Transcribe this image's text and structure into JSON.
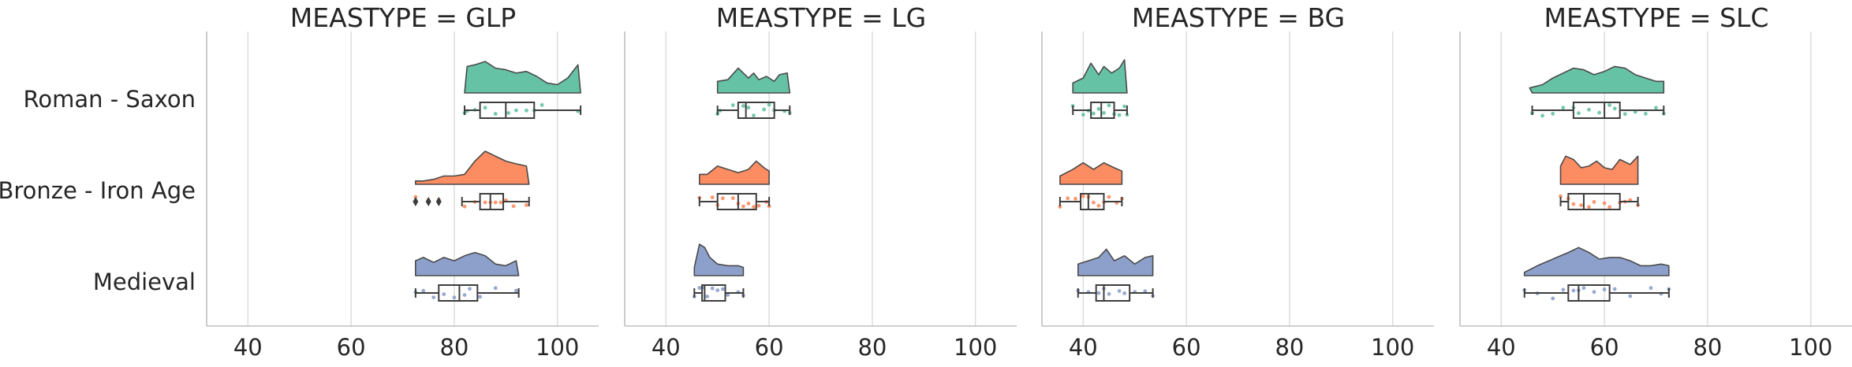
{
  "chart_data": {
    "type": "raincloud",
    "categories": [
      "Roman - Saxon",
      "Bronze - Iron Age",
      "Medieval"
    ],
    "colors": {
      "Roman - Saxon": "#66c2a5",
      "Bronze - Iron Age": "#fc8d62",
      "Medieval": "#8da0cb"
    },
    "xlim": [
      32,
      108
    ],
    "xticks": [
      40,
      60,
      80,
      100
    ],
    "grid": true,
    "panels": [
      {
        "title": "MEASTYPE = GLP",
        "groups": [
          {
            "category": "Roman - Saxon",
            "box": {
              "whislo": 82,
              "q1": 85,
              "med": 90,
              "q3": 95.5,
              "whishi": 104.5,
              "fliers": []
            },
            "points": [
              82,
              82.5,
              84,
              86,
              88,
              90.5,
              92,
              94,
              95.5,
              97,
              104
            ],
            "density": [
              [
                82,
                0.0
              ],
              [
                82.5,
                0.8
              ],
              [
                84,
                0.85
              ],
              [
                86,
                0.95
              ],
              [
                88,
                0.75
              ],
              [
                90,
                0.7
              ],
              [
                92,
                0.6
              ],
              [
                94,
                0.65
              ],
              [
                96,
                0.5
              ],
              [
                98,
                0.3
              ],
              [
                100,
                0.25
              ],
              [
                102,
                0.45
              ],
              [
                104,
                0.85
              ],
              [
                104.5,
                0.0
              ]
            ]
          },
          {
            "category": "Bronze - Iron Age",
            "box": {
              "whislo": 81.5,
              "q1": 85,
              "med": 87,
              "q3": 89.5,
              "whishi": 94.5,
              "fliers": [
                72.5,
                75,
                77
              ]
            },
            "points": [
              72.5,
              75,
              77,
              82,
              84,
              86,
              87,
              88,
              89,
              90,
              91.5,
              94
            ],
            "density": [
              [
                72.5,
                0.0
              ],
              [
                72.5,
                0.1
              ],
              [
                74,
                0.1
              ],
              [
                76,
                0.15
              ],
              [
                78,
                0.25
              ],
              [
                80,
                0.25
              ],
              [
                82,
                0.3
              ],
              [
                84,
                0.7
              ],
              [
                86,
                1.0
              ],
              [
                88,
                0.85
              ],
              [
                90,
                0.7
              ],
              [
                92,
                0.62
              ],
              [
                94,
                0.55
              ],
              [
                94.5,
                0.0
              ]
            ]
          },
          {
            "category": "Medieval",
            "box": {
              "whislo": 72.5,
              "q1": 77,
              "med": 81,
              "q3": 84.5,
              "whishi": 92.5,
              "fliers": []
            },
            "points": [
              72.5,
              74,
              76,
              78,
              80,
              82,
              83,
              85,
              88,
              92
            ],
            "density": [
              [
                72.5,
                0.0
              ],
              [
                72.5,
                0.45
              ],
              [
                74,
                0.55
              ],
              [
                76,
                0.4
              ],
              [
                78,
                0.55
              ],
              [
                80,
                0.45
              ],
              [
                82,
                0.6
              ],
              [
                84,
                0.7
              ],
              [
                86,
                0.6
              ],
              [
                88,
                0.35
              ],
              [
                90,
                0.3
              ],
              [
                92,
                0.45
              ],
              [
                92.5,
                0.0
              ]
            ]
          }
        ]
      },
      {
        "title": "MEASTYPE = LG",
        "groups": [
          {
            "category": "Roman - Saxon",
            "box": {
              "whislo": 50,
              "q1": 54,
              "med": 55.5,
              "q3": 61,
              "whishi": 64,
              "fliers": []
            },
            "points": [
              50,
              50.5,
              53,
              55,
              56,
              57,
              59,
              60,
              61,
              63,
              64
            ],
            "density": [
              [
                50,
                0.0
              ],
              [
                50,
                0.35
              ],
              [
                52,
                0.4
              ],
              [
                54,
                0.75
              ],
              [
                55,
                0.6
              ],
              [
                56,
                0.45
              ],
              [
                57,
                0.6
              ],
              [
                58,
                0.4
              ],
              [
                59.5,
                0.5
              ],
              [
                61,
                0.35
              ],
              [
                62,
                0.55
              ],
              [
                63.5,
                0.6
              ],
              [
                64,
                0.0
              ]
            ]
          },
          {
            "category": "Bronze - Iron Age",
            "box": {
              "whislo": 46.5,
              "q1": 50,
              "med": 54,
              "q3": 57.5,
              "whishi": 60,
              "fliers": []
            },
            "points": [
              46.5,
              49,
              50,
              51,
              53,
              54,
              55,
              56,
              57,
              58,
              59.5,
              60
            ],
            "density": [
              [
                46.5,
                0.0
              ],
              [
                46.5,
                0.3
              ],
              [
                48,
                0.3
              ],
              [
                50,
                0.55
              ],
              [
                52,
                0.45
              ],
              [
                54,
                0.35
              ],
              [
                56,
                0.45
              ],
              [
                57.5,
                0.7
              ],
              [
                59,
                0.5
              ],
              [
                60,
                0.4
              ],
              [
                60,
                0.0
              ]
            ]
          },
          {
            "category": "Medieval",
            "box": {
              "whislo": 45.5,
              "q1": 47,
              "med": 47.5,
              "q3": 51.5,
              "whishi": 55,
              "fliers": []
            },
            "points": [
              45.5,
              46.5,
              47,
              48,
              49,
              50,
              51,
              52,
              54,
              55
            ],
            "density": [
              [
                45.5,
                0.0
              ],
              [
                45.5,
                0.25
              ],
              [
                46.5,
                0.95
              ],
              [
                47.5,
                0.85
              ],
              [
                48.5,
                0.55
              ],
              [
                50,
                0.35
              ],
              [
                52,
                0.3
              ],
              [
                54,
                0.3
              ],
              [
                55,
                0.25
              ],
              [
                55,
                0.0
              ]
            ]
          }
        ]
      },
      {
        "title": "MEASTYPE = BG",
        "groups": [
          {
            "category": "Roman - Saxon",
            "box": {
              "whislo": 38,
              "q1": 41.5,
              "med": 43.5,
              "q3": 46,
              "whishi": 48.5,
              "fliers": []
            },
            "points": [
              38,
              40,
              41,
              42,
              43,
              44,
              45,
              46,
              47,
              48,
              48.5
            ],
            "density": [
              [
                38,
                0.0
              ],
              [
                38,
                0.3
              ],
              [
                40,
                0.45
              ],
              [
                41.5,
                0.9
              ],
              [
                43,
                0.55
              ],
              [
                44,
                0.8
              ],
              [
                45.5,
                0.6
              ],
              [
                47,
                0.75
              ],
              [
                48,
                1.0
              ],
              [
                48.5,
                0.0
              ]
            ]
          },
          {
            "category": "Bronze - Iron Age",
            "box": {
              "whislo": 35.5,
              "q1": 39.5,
              "med": 41,
              "q3": 44,
              "whishi": 47.5,
              "fliers": []
            },
            "points": [
              35.5,
              37,
              38.5,
              40,
              41,
              42,
              43,
              44,
              45,
              46.5,
              47.5
            ],
            "density": [
              [
                35.5,
                0.0
              ],
              [
                35.5,
                0.25
              ],
              [
                38,
                0.45
              ],
              [
                40,
                0.65
              ],
              [
                42,
                0.45
              ],
              [
                44,
                0.65
              ],
              [
                46,
                0.5
              ],
              [
                47.5,
                0.4
              ],
              [
                47.5,
                0.0
              ]
            ]
          },
          {
            "category": "Medieval",
            "box": {
              "whislo": 39,
              "q1": 42.5,
              "med": 44,
              "q3": 49,
              "whishi": 53.5,
              "fliers": []
            },
            "points": [
              39,
              41,
              43,
              44,
              45,
              47,
              48,
              50,
              52,
              53.5
            ],
            "density": [
              [
                39,
                0.0
              ],
              [
                39,
                0.35
              ],
              [
                41,
                0.45
              ],
              [
                43,
                0.55
              ],
              [
                44.5,
                0.8
              ],
              [
                46,
                0.45
              ],
              [
                48,
                0.6
              ],
              [
                50,
                0.35
              ],
              [
                52,
                0.55
              ],
              [
                53.5,
                0.6
              ],
              [
                53.5,
                0.0
              ]
            ]
          }
        ]
      },
      {
        "title": "MEASTYPE = SLC",
        "groups": [
          {
            "category": "Roman - Saxon",
            "box": {
              "whislo": 46,
              "q1": 54,
              "med": 60,
              "q3": 63,
              "whishi": 71.5,
              "fliers": []
            },
            "points": [
              46,
              48,
              50,
              52,
              54,
              55,
              57,
              59,
              61,
              62,
              64,
              66,
              68,
              70,
              71.5
            ],
            "density": [
              [
                46,
                0.0
              ],
              [
                45.5,
                0.15
              ],
              [
                48,
                0.25
              ],
              [
                50,
                0.45
              ],
              [
                52,
                0.6
              ],
              [
                54,
                0.75
              ],
              [
                56,
                0.7
              ],
              [
                58,
                0.55
              ],
              [
                60,
                0.65
              ],
              [
                62,
                0.8
              ],
              [
                64,
                0.75
              ],
              [
                66,
                0.55
              ],
              [
                68,
                0.45
              ],
              [
                70,
                0.35
              ],
              [
                71.5,
                0.35
              ],
              [
                71.5,
                0.0
              ]
            ]
          },
          {
            "category": "Bronze - Iron Age",
            "box": {
              "whislo": 51.5,
              "q1": 53,
              "med": 56,
              "q3": 63,
              "whishi": 66.5,
              "fliers": []
            },
            "points": [
              51.5,
              53,
              54,
              55.5,
              57,
              58,
              60,
              61,
              63,
              64,
              65,
              66.5
            ],
            "density": [
              [
                51.5,
                0.0
              ],
              [
                51.5,
                0.55
              ],
              [
                52.5,
                0.85
              ],
              [
                54,
                0.75
              ],
              [
                55.5,
                0.5
              ],
              [
                57,
                0.55
              ],
              [
                58.5,
                0.7
              ],
              [
                60,
                0.5
              ],
              [
                61.5,
                0.45
              ],
              [
                63,
                0.75
              ],
              [
                65,
                0.6
              ],
              [
                66.5,
                0.85
              ],
              [
                66.5,
                0.0
              ]
            ]
          },
          {
            "category": "Medieval",
            "box": {
              "whislo": 44.5,
              "q1": 53,
              "med": 55,
              "q3": 61,
              "whishi": 72.5,
              "fliers": []
            },
            "points": [
              44.5,
              47,
              50,
              52,
              54,
              55,
              56,
              58,
              60,
              62,
              65,
              69,
              71,
              72.5
            ],
            "density": [
              [
                44.5,
                0.0
              ],
              [
                44.5,
                0.1
              ],
              [
                47,
                0.3
              ],
              [
                50,
                0.5
              ],
              [
                53,
                0.7
              ],
              [
                55,
                0.85
              ],
              [
                57,
                0.7
              ],
              [
                59,
                0.5
              ],
              [
                61,
                0.55
              ],
              [
                63,
                0.55
              ],
              [
                65,
                0.45
              ],
              [
                67,
                0.3
              ],
              [
                69,
                0.3
              ],
              [
                71,
                0.35
              ],
              [
                72.5,
                0.3
              ],
              [
                72.5,
                0.0
              ]
            ]
          }
        ]
      }
    ]
  }
}
